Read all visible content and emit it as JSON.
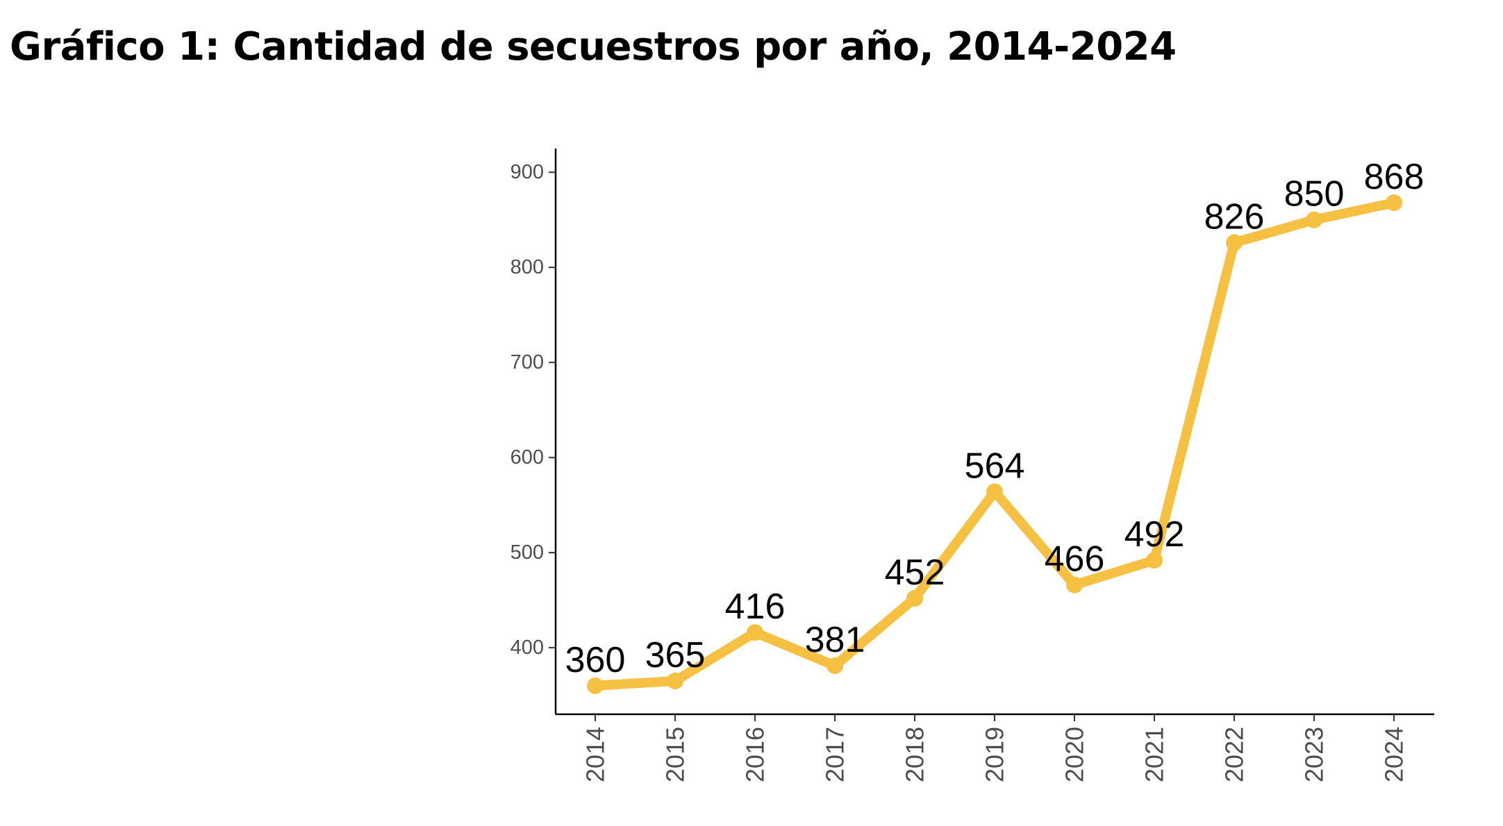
{
  "title": "Gráfico 1: Cantidad de secuestros por año, 2014-2024",
  "colors": {
    "line": "#F6C042",
    "axis": "#000000",
    "tick_label": "#4d4d4d",
    "data_label": "#000000",
    "background": "#ffffff"
  },
  "chart_data": {
    "type": "line",
    "title": "Gráfico 1: Cantidad de secuestros por año, 2014-2024",
    "xlabel": "",
    "ylabel": "",
    "categories": [
      "2014",
      "2015",
      "2016",
      "2017",
      "2018",
      "2019",
      "2020",
      "2021",
      "2022",
      "2023",
      "2024"
    ],
    "series": [
      {
        "values": [
          360,
          365,
          416,
          381,
          452,
          564,
          466,
          492,
          826,
          850,
          868
        ]
      }
    ],
    "data_labels": [
      "360",
      "365",
      "416",
      "381",
      "452",
      "564",
      "466",
      "492",
      "826",
      "850",
      "868"
    ],
    "ylim": [
      330,
      925
    ],
    "yticks": [
      400,
      500,
      600,
      700,
      800,
      900
    ],
    "ytick_labels": [
      "400",
      "500",
      "600",
      "700",
      "800",
      "900"
    ],
    "x_tick_rotation": "vertical",
    "grid": false,
    "legend": "none",
    "markers": true
  }
}
